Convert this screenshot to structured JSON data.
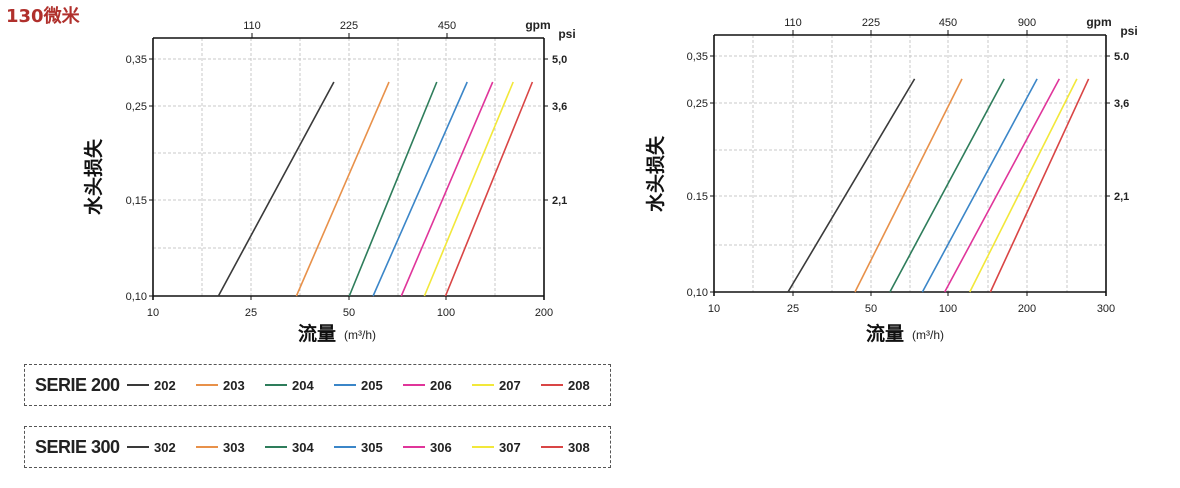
{
  "headline": "130微米",
  "chart_data": [
    {
      "type": "line",
      "xlabel": "流量",
      "xunit": "(m³/h)",
      "ylabel": "水头损失",
      "x_scale": "log",
      "y_scale": "log",
      "xlim": [
        10,
        200
      ],
      "ylim": [
        0.1,
        0.35
      ],
      "x_ticks": [
        10,
        25,
        50,
        100,
        200
      ],
      "y_ticks": [
        "0,10",
        "0,15",
        "0,25",
        "0,35"
      ],
      "top_axis": {
        "unit": "gpm",
        "ticks": [
          "110",
          "225",
          "450"
        ]
      },
      "right_axis": {
        "unit": "psi",
        "ticks": [
          "2,1",
          "3,6",
          "5,0"
        ]
      },
      "grid": true,
      "series": [
        {
          "name": "202",
          "color": "#3a3a3a",
          "points": [
            [
              16.5,
              0.1
            ],
            [
              40,
              0.31
            ]
          ]
        },
        {
          "name": "203",
          "color": "#e8914a",
          "points": [
            [
              30,
              0.1
            ],
            [
              61,
              0.31
            ]
          ]
        },
        {
          "name": "204",
          "color": "#2e7d5b",
          "points": [
            [
              45,
              0.1
            ],
            [
              88,
              0.31
            ]
          ]
        },
        {
          "name": "205",
          "color": "#3b86c8",
          "points": [
            [
              54,
              0.1
            ],
            [
              111,
              0.31
            ]
          ]
        },
        {
          "name": "206",
          "color": "#e0359a",
          "points": [
            [
              67,
              0.1
            ],
            [
              135,
              0.31
            ]
          ]
        },
        {
          "name": "207",
          "color": "#f2e83a",
          "points": [
            [
              80,
              0.1
            ],
            [
              158,
              0.31
            ]
          ]
        },
        {
          "name": "208",
          "color": "#d94545",
          "points": [
            [
              94,
              0.1
            ],
            [
              183,
              0.31
            ]
          ]
        }
      ]
    },
    {
      "type": "line",
      "xlabel": "流量",
      "xunit": "(m³/h)",
      "ylabel": "水头损失",
      "x_scale": "log",
      "y_scale": "log",
      "xlim": [
        10,
        300
      ],
      "ylim": [
        0.1,
        0.35
      ],
      "x_ticks": [
        10,
        25,
        50,
        100,
        200,
        300
      ],
      "y_ticks": [
        "0,10",
        "0.15",
        "0,25",
        "0,35"
      ],
      "top_axis": {
        "unit": "gpm",
        "ticks": [
          "110",
          "225",
          "450",
          "900"
        ]
      },
      "right_axis": {
        "unit": "psi",
        "ticks": [
          "2,1",
          "3,6",
          "5.0"
        ]
      },
      "grid": true,
      "series": [
        {
          "name": "302",
          "color": "#3a3a3a",
          "points": [
            [
              19,
              0.1
            ],
            [
              57,
              0.31
            ]
          ]
        },
        {
          "name": "303",
          "color": "#e8914a",
          "points": [
            [
              34,
              0.1
            ],
            [
              86,
              0.31
            ]
          ]
        },
        {
          "name": "304",
          "color": "#2e7d5b",
          "points": [
            [
              46,
              0.1
            ],
            [
              124,
              0.31
            ]
          ]
        },
        {
          "name": "305",
          "color": "#3b86c8",
          "points": [
            [
              61,
              0.1
            ],
            [
              165,
              0.31
            ]
          ]
        },
        {
          "name": "306",
          "color": "#e0359a",
          "points": [
            [
              74,
              0.1
            ],
            [
              200,
              0.31
            ]
          ]
        },
        {
          "name": "307",
          "color": "#f2e83a",
          "points": [
            [
              92,
              0.1
            ],
            [
              233,
              0.31
            ]
          ]
        },
        {
          "name": "308",
          "color": "#d94545",
          "points": [
            [
              110,
              0.1
            ],
            [
              258,
              0.31
            ]
          ]
        }
      ]
    }
  ],
  "legends": [
    {
      "title": "SERIE 200",
      "items": [
        {
          "label": "202",
          "color": "#3a3a3a"
        },
        {
          "label": "203",
          "color": "#e8914a"
        },
        {
          "label": "204",
          "color": "#2e7d5b"
        },
        {
          "label": "205",
          "color": "#3b86c8"
        },
        {
          "label": "206",
          "color": "#e0359a"
        },
        {
          "label": "207",
          "color": "#f2e83a"
        },
        {
          "label": "208",
          "color": "#d94545"
        }
      ]
    },
    {
      "title": "SERIE 300",
      "items": [
        {
          "label": "302",
          "color": "#3a3a3a"
        },
        {
          "label": "303",
          "color": "#e8914a"
        },
        {
          "label": "304",
          "color": "#2e7d5b"
        },
        {
          "label": "305",
          "color": "#3b86c8"
        },
        {
          "label": "306",
          "color": "#e0359a"
        },
        {
          "label": "307",
          "color": "#f2e83a"
        },
        {
          "label": "308",
          "color": "#d94545"
        }
      ]
    }
  ]
}
